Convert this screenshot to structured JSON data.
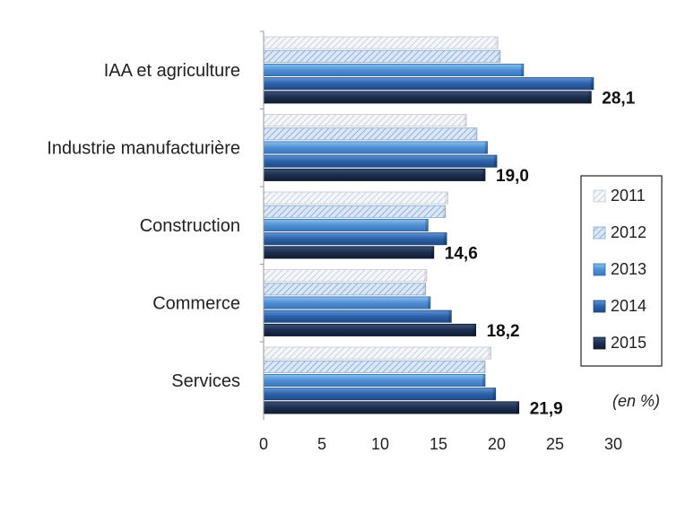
{
  "chart_data": {
    "type": "bar",
    "orientation": "horizontal",
    "categories": [
      "IAA et agriculture",
      "Industrie manufacturière",
      "Construction",
      "Commerce",
      "Services"
    ],
    "series": [
      {
        "name": "2011",
        "values": [
          20.1,
          17.4,
          15.8,
          14.0,
          19.5
        ],
        "color": "#e8edf6",
        "pattern": "hatch-light"
      },
      {
        "name": "2012",
        "values": [
          20.3,
          18.3,
          15.6,
          13.9,
          19.0
        ],
        "color": "#bcd2ee",
        "pattern": "hatch"
      },
      {
        "name": "2013",
        "values": [
          22.3,
          19.2,
          14.1,
          14.3,
          19.0
        ],
        "color": "#5b9bd5",
        "pattern": "solid"
      },
      {
        "name": "2014",
        "values": [
          28.3,
          20.0,
          15.7,
          16.1,
          19.9
        ],
        "color": "#2e63a8",
        "pattern": "solid"
      },
      {
        "name": "2015",
        "values": [
          28.1,
          19.0,
          14.6,
          18.2,
          21.9
        ],
        "color": "#1c2f4f",
        "pattern": "solid"
      }
    ],
    "data_labels": [
      "28,1",
      "19,0",
      "14,6",
      "18,2",
      "21,9"
    ],
    "xlim": [
      0,
      30
    ],
    "x_ticks": [
      "0",
      "5",
      "10",
      "15",
      "20",
      "25",
      "30"
    ],
    "unit_note": "(en %)",
    "legend_position": "right",
    "grid": false
  }
}
